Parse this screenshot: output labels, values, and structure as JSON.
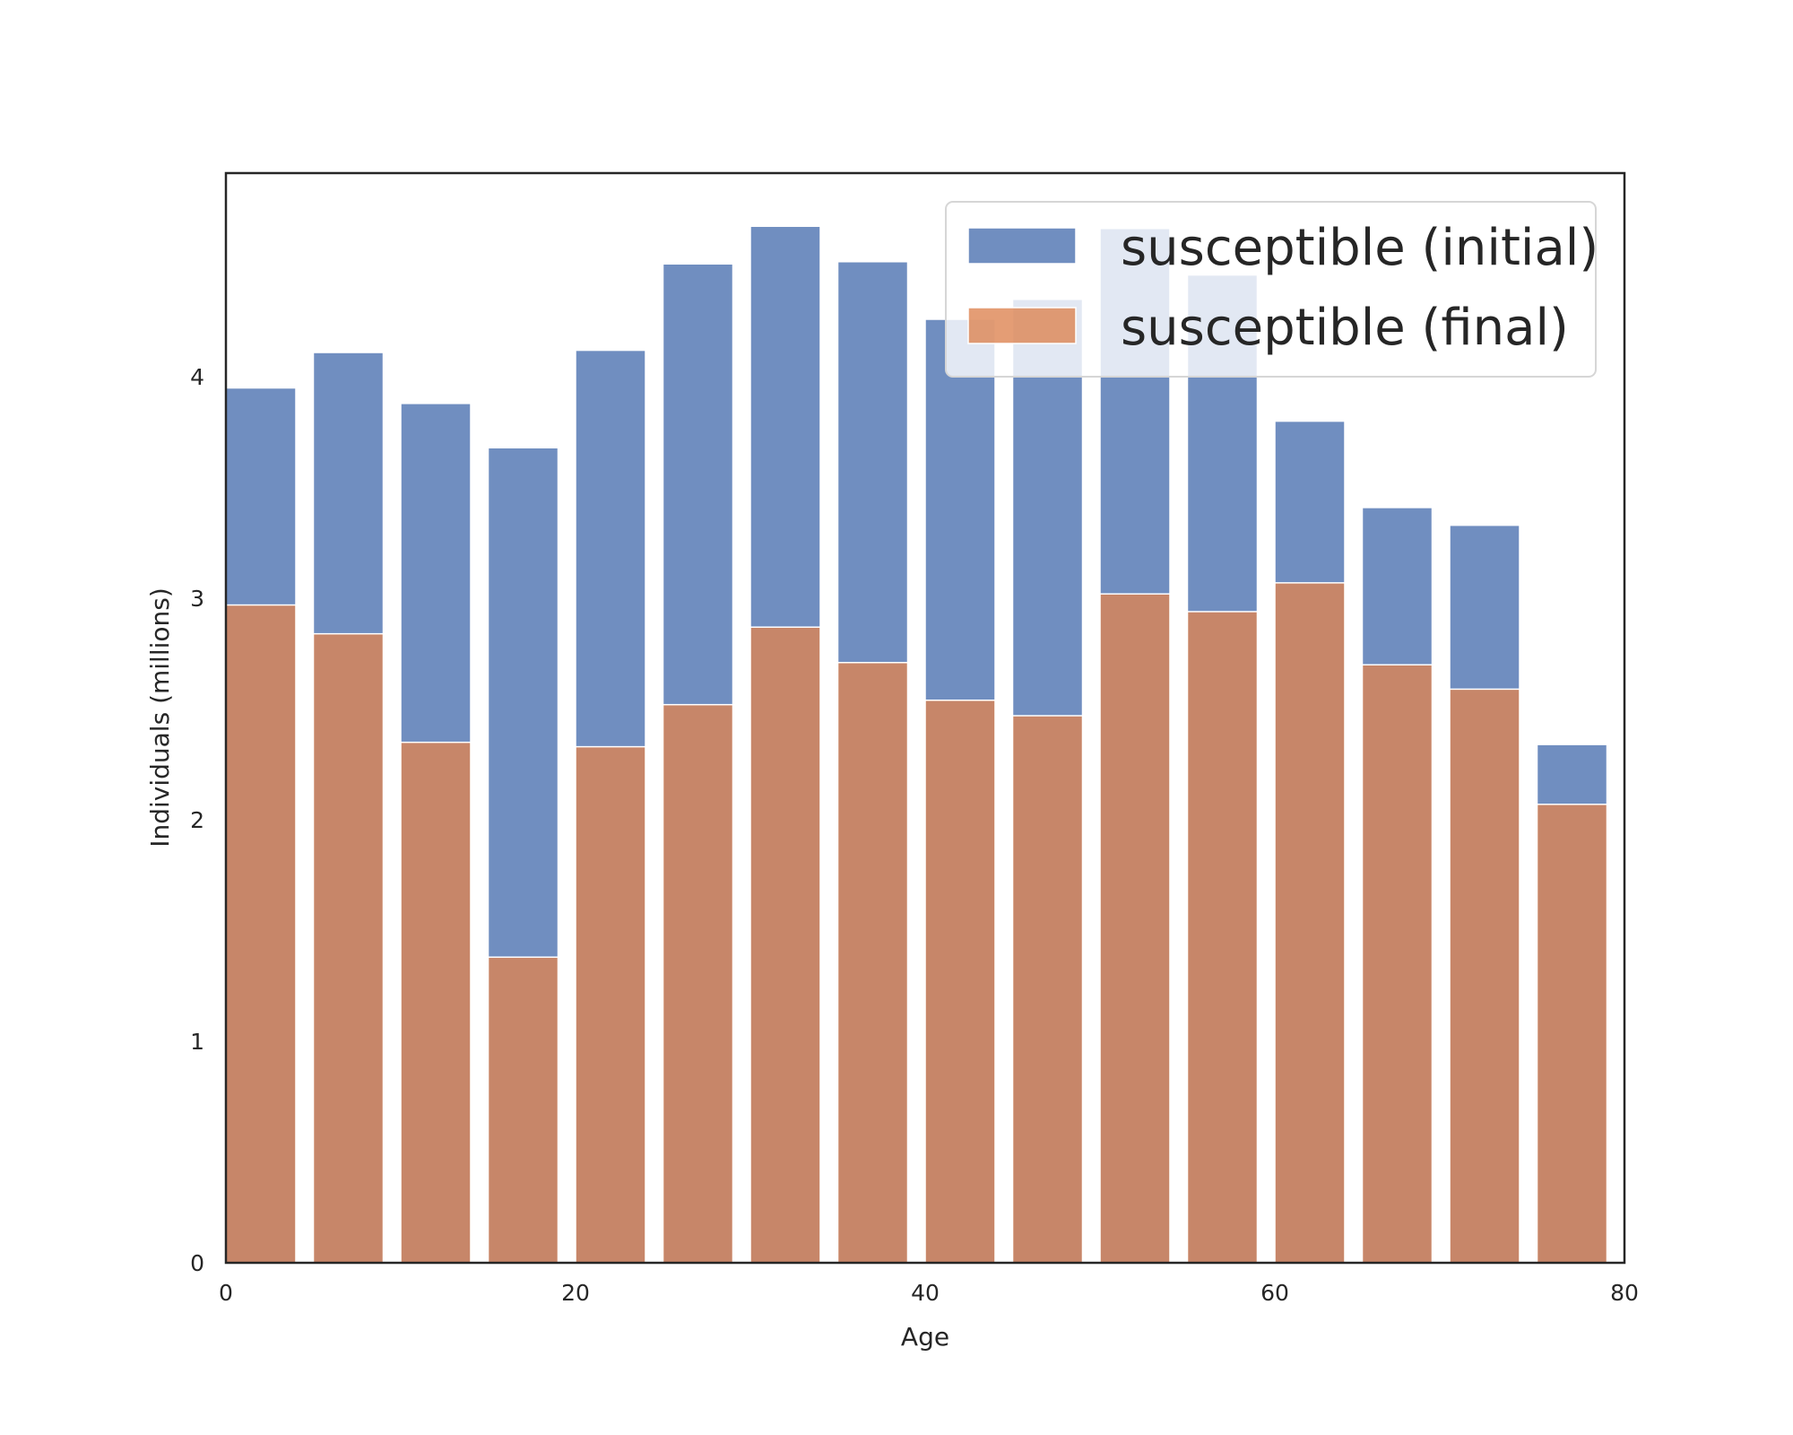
{
  "chart_data": {
    "type": "bar",
    "title": "",
    "xlabel": "Age",
    "ylabel": "Individuals (millions)",
    "xlim": [
      0,
      80
    ],
    "ylim": [
      0,
      4.92
    ],
    "x_ticks": [
      "0",
      "20",
      "40",
      "60",
      "80"
    ],
    "y_ticks": [
      "0",
      "1",
      "2",
      "3",
      "4"
    ],
    "bar_width": 4,
    "x": [
      2,
      7,
      12,
      17,
      22,
      27,
      32,
      37,
      42,
      47,
      52,
      57,
      62,
      67,
      72,
      77
    ],
    "grid": false,
    "legend": {
      "placement": "top-right"
    },
    "series": [
      {
        "name": "susceptible (initial)",
        "color": "#4c72b0",
        "values": [
          3.95,
          4.11,
          3.88,
          3.68,
          4.12,
          4.51,
          4.68,
          4.52,
          4.26,
          4.35,
          4.67,
          4.46,
          3.8,
          3.41,
          3.33,
          2.34
        ]
      },
      {
        "name": "susceptible (final)",
        "color": "#dd8452",
        "values": [
          2.97,
          2.84,
          2.35,
          1.38,
          2.33,
          2.52,
          2.87,
          2.71,
          2.54,
          2.47,
          3.02,
          2.94,
          3.07,
          2.7,
          2.59,
          2.07
        ]
      }
    ]
  }
}
